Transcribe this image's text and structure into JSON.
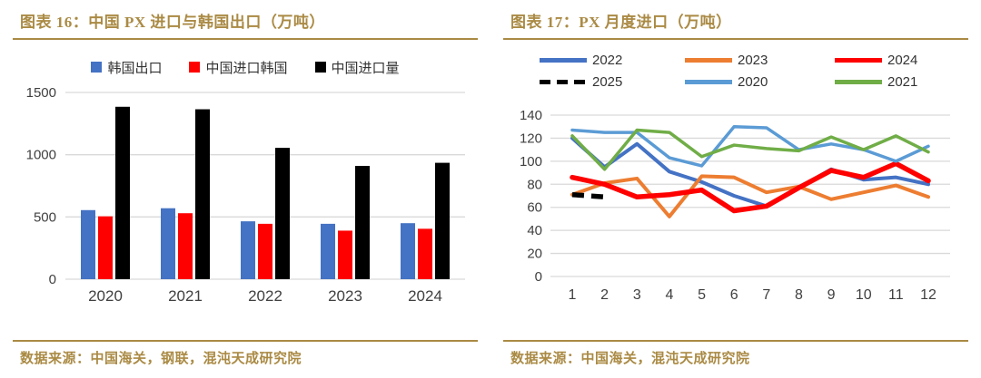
{
  "accent_color": "#AA8A44",
  "left_panel": {
    "title": "图表  16：中国 PX 进口与韩国出口（万吨）",
    "source": "数据来源：中国海关，钢联，混沌天成研究院"
  },
  "right_panel": {
    "title": "图表  17：PX 月度进口（万吨）",
    "source": "数据来源：中国海关，混沌天成研究院"
  },
  "colors": {
    "gridline": "#D9D9D9",
    "axis_text": "#404040",
    "legend_text": "#333333"
  },
  "chart_data": [
    {
      "type": "bar",
      "title": "中国 PX 进口与韩国出口（万吨）",
      "categories": [
        "2020",
        "2021",
        "2022",
        "2023",
        "2024"
      ],
      "series": [
        {
          "name": "韩国出口",
          "color": "#4472C4",
          "values": [
            555,
            570,
            465,
            445,
            450
          ]
        },
        {
          "name": "中国进口韩国",
          "color": "#FF0000",
          "values": [
            505,
            530,
            445,
            390,
            405
          ]
        },
        {
          "name": "中国进口量",
          "color": "#000000",
          "values": [
            1385,
            1365,
            1055,
            910,
            935
          ]
        }
      ],
      "ylim": [
        0,
        1500
      ],
      "yticks": [
        0,
        500,
        1000,
        1500
      ],
      "grid": true,
      "legend_position": "top"
    },
    {
      "type": "line",
      "title": "PX 月度进口（万吨）",
      "x": [
        1,
        2,
        3,
        4,
        5,
        6,
        7,
        8,
        9,
        10,
        11,
        12
      ],
      "series": [
        {
          "name": "2022",
          "color": "#4472C4",
          "dash": false,
          "width": 4,
          "values": [
            120,
            95,
            115,
            91,
            82,
            70,
            61,
            77,
            93,
            84,
            86,
            80
          ]
        },
        {
          "name": "2023",
          "color": "#ED7D31",
          "dash": false,
          "width": 4,
          "values": [
            71,
            81,
            85,
            52,
            87,
            86,
            73,
            78,
            67,
            73,
            79,
            69
          ]
        },
        {
          "name": "2024",
          "color": "#FF0000",
          "dash": false,
          "width": 5.5,
          "values": [
            86,
            80,
            69,
            71,
            75,
            57,
            61,
            77,
            92,
            86,
            98,
            83
          ]
        },
        {
          "name": "2025",
          "color": "#000000",
          "dash": true,
          "width": 5.5,
          "values": [
            71,
            69
          ]
        },
        {
          "name": "2020",
          "color": "#5B9BD5",
          "dash": false,
          "width": 3.5,
          "values": [
            127,
            125,
            125,
            103,
            96,
            130,
            129,
            110,
            115,
            110,
            100,
            113
          ]
        },
        {
          "name": "2021",
          "color": "#70AD47",
          "dash": false,
          "width": 3.5,
          "values": [
            122,
            93,
            127,
            125,
            104,
            114,
            111,
            109,
            121,
            110,
            122,
            108
          ]
        }
      ],
      "ylim": [
        0,
        140
      ],
      "yticks": [
        0,
        20,
        40,
        60,
        80,
        100,
        120,
        140
      ],
      "grid": true,
      "legend_position": "top"
    }
  ]
}
